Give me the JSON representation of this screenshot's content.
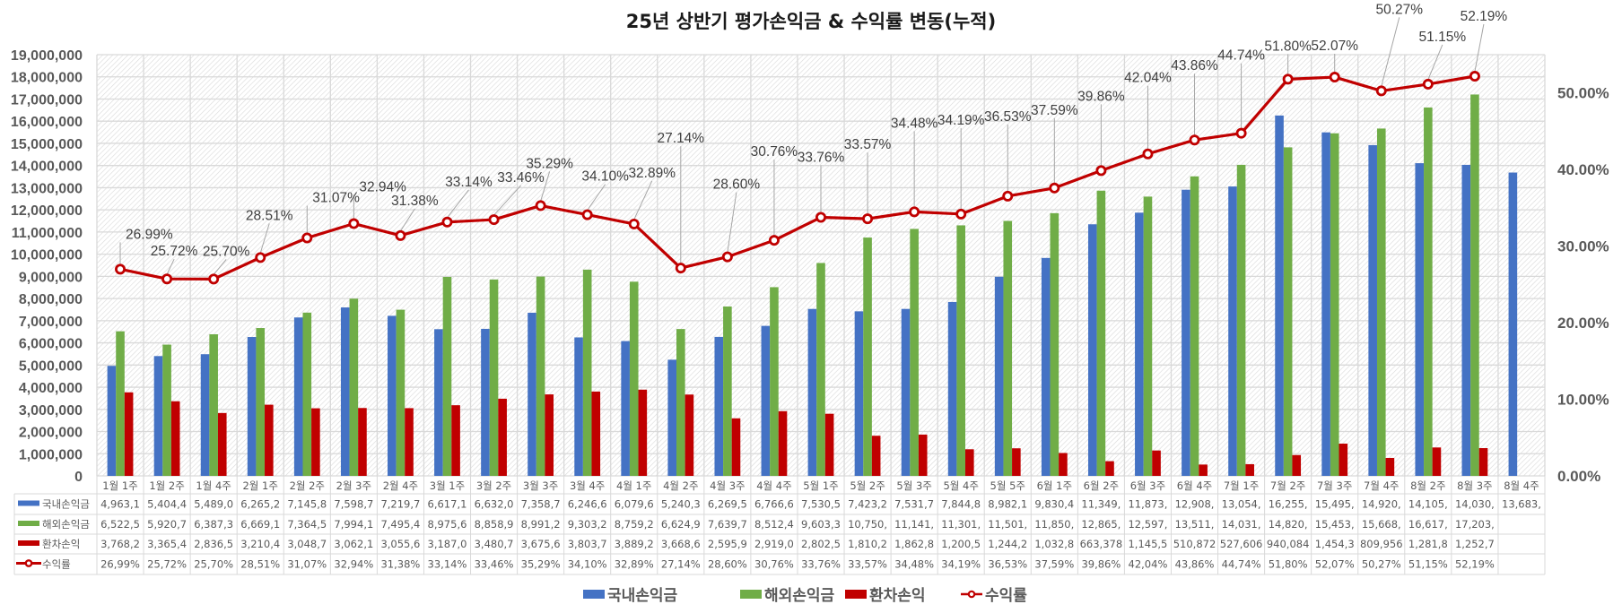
{
  "chart_data": {
    "type": "bar+line",
    "title": "25년 상반기 평가손익금 & 수익률 변동(누적)",
    "categories": [
      "1월 1주",
      "1월 2주",
      "1월 4주",
      "2월 1주",
      "2월 2주",
      "2월 3주",
      "2월 4주",
      "3월 1주",
      "3월 2주",
      "3월 3주",
      "3월 4주",
      "4월 1주",
      "4월 2주",
      "4월 3주",
      "4월 4주",
      "5월 1주",
      "5월 2주",
      "5월 3주",
      "5월 4주",
      "5월 5주",
      "6월 1주",
      "6월 2주",
      "6월 3주",
      "6월 4주",
      "7월 1주",
      "7월 2주",
      "7월 3주",
      "7월 4주",
      "8월 2주",
      "8월 3주",
      "8월 4주"
    ],
    "y_axis": {
      "min": 0,
      "max": 19000000,
      "step": 1000000,
      "tick_labels": [
        "0",
        "1,000,000",
        "2,000,000",
        "3,000,000",
        "4,000,000",
        "5,000,000",
        "6,000,000",
        "7,000,000",
        "8,000,000",
        "9,000,000",
        "10,000,000",
        "11,000,000",
        "12,000,000",
        "13,000,000",
        "14,000,000",
        "15,000,000",
        "16,000,000",
        "17,000,000",
        "18,000,000",
        "19,000,000"
      ]
    },
    "y2_axis": {
      "min": 0,
      "max": 55,
      "step": 10,
      "unit": "%",
      "tick_labels": [
        "0.00%",
        "10.00%",
        "20.00%",
        "30.00%",
        "40.00%",
        "50.00%"
      ]
    },
    "grid": true,
    "legend_position": "bottom",
    "series": [
      {
        "name": "국내손익금",
        "type": "bar",
        "color": "#4472C4",
        "axis": "primary",
        "values": [
          4963100,
          5404400,
          5489000,
          6265200,
          7145800,
          7598700,
          7219700,
          6617100,
          6632000,
          7358700,
          6246600,
          6079600,
          5240300,
          6269500,
          6766600,
          7530500,
          7423200,
          7531700,
          7844800,
          8982100,
          9830400,
          11349000,
          11873000,
          12908000,
          13054000,
          16255000,
          15495000,
          14920000,
          14105000,
          14030000,
          13683000
        ],
        "table_text": [
          "4,963,1",
          "5,404,4",
          "5,489,0",
          "6,265,2",
          "7,145,8",
          "7,598,7",
          "7,219,7",
          "6,617,1",
          "6,632,0",
          "7,358,7",
          "6,246,6",
          "6,079,6",
          "5,240,3",
          "6,269,5",
          "6,766,6",
          "7,530,5",
          "7,423,2",
          "7,531,7",
          "7,844,8",
          "8,982,1",
          "9,830,4",
          "11,349,",
          "11,873,",
          "12,908,",
          "13,054,",
          "16,255,",
          "15,495,",
          "14,920,",
          "14,105,",
          "14,030,",
          "13,683,"
        ]
      },
      {
        "name": "해외손익금",
        "type": "bar",
        "color": "#70AD47",
        "axis": "primary",
        "values": [
          6522500,
          5920700,
          6387300,
          6669100,
          7364500,
          7994100,
          7495400,
          8975600,
          8858900,
          8991200,
          9303200,
          8759200,
          6624900,
          7639700,
          8512400,
          9603300,
          10750000,
          11141000,
          11301000,
          11501000,
          11850000,
          12865000,
          12597000,
          13511000,
          14031000,
          14820000,
          15453000,
          15668000,
          16617000,
          17203000,
          null
        ],
        "table_text": [
          "6,522,5",
          "5,920,7",
          "6,387,3",
          "6,669,1",
          "7,364,5",
          "7,994,1",
          "7,495,4",
          "8,975,6",
          "8,858,9",
          "8,991,2",
          "9,303,2",
          "8,759,2",
          "6,624,9",
          "7,639,7",
          "8,512,4",
          "9,603,3",
          "10,750,",
          "11,141,",
          "11,301,",
          "11,501,",
          "11,850,",
          "12,865,",
          "12,597,",
          "13,511,",
          "14,031,",
          "14,820,",
          "15,453,",
          "15,668,",
          "16,617,",
          "17,203,",
          ""
        ]
      },
      {
        "name": "환차손익",
        "type": "bar",
        "color": "#C00000",
        "axis": "primary",
        "values": [
          3768200,
          3365400,
          2836500,
          3210400,
          3048700,
          3062100,
          3055600,
          3187000,
          3480700,
          3675600,
          3803700,
          3889200,
          3668600,
          2595900,
          2919000,
          2802500,
          1810200,
          1862800,
          1200500,
          1244200,
          1032800,
          663378,
          1145500,
          510872,
          527606,
          940084,
          1454300,
          809956,
          1281800,
          1252700,
          null
        ],
        "table_text": [
          "3,768,2",
          "3,365,4",
          "2,836,5",
          "3,210,4",
          "3,048,7",
          "3,062,1",
          "3,055,6",
          "3,187,0",
          "3,480,7",
          "3,675,6",
          "3,803,7",
          "3,889,2",
          "3,668,6",
          "2,595,9",
          "2,919,0",
          "2,802,5",
          "1,810,2",
          "1,862,8",
          "1,200,5",
          "1,244,2",
          "1,032,8",
          "663,378",
          "1,145,5",
          "510,872",
          "527,606",
          "940,084",
          "1,454,3",
          "809,956",
          "1,281,8",
          "1,252,7",
          ""
        ]
      },
      {
        "name": "수익률",
        "type": "line",
        "color": "#C00000",
        "axis": "secondary",
        "values": [
          26.99,
          25.72,
          25.7,
          28.51,
          31.07,
          32.94,
          31.38,
          33.14,
          33.46,
          35.29,
          34.1,
          32.89,
          27.14,
          28.6,
          30.76,
          33.76,
          33.57,
          34.48,
          34.19,
          36.53,
          37.59,
          39.86,
          42.04,
          43.86,
          44.74,
          51.8,
          52.07,
          50.27,
          51.15,
          52.19,
          null
        ],
        "data_labels": [
          "26.99%",
          "25.72%",
          "25.70%",
          "28.51%",
          "31.07%",
          "32.94%",
          "31.38%",
          "33.14%",
          "33.46%",
          "35.29%",
          "34.10%",
          "32.89%",
          "27.14%",
          "28.60%",
          "30.76%",
          "33.76%",
          "33.57%",
          "34.48%",
          "34.19%",
          "36.53%",
          "37.59%",
          "39.86%",
          "42.04%",
          "43.86%",
          "44.74%",
          "51.80%",
          "52.07%",
          "50.27%",
          "51.15%",
          "52.19%",
          ""
        ],
        "table_text": [
          "26,99%",
          "25,72%",
          "25,70%",
          "28,51%",
          "31,07%",
          "32,94%",
          "31,38%",
          "33,14%",
          "33,46%",
          "35,29%",
          "34,10%",
          "32,89%",
          "27,14%",
          "28,60%",
          "30,76%",
          "33,76%",
          "33,57%",
          "34,48%",
          "34,19%",
          "36,53%",
          "37,59%",
          "39,86%",
          "42,04%",
          "43,86%",
          "44,74%",
          "51,80%",
          "52,07%",
          "50,27%",
          "51,15%",
          "52,19%",
          ""
        ]
      }
    ]
  }
}
